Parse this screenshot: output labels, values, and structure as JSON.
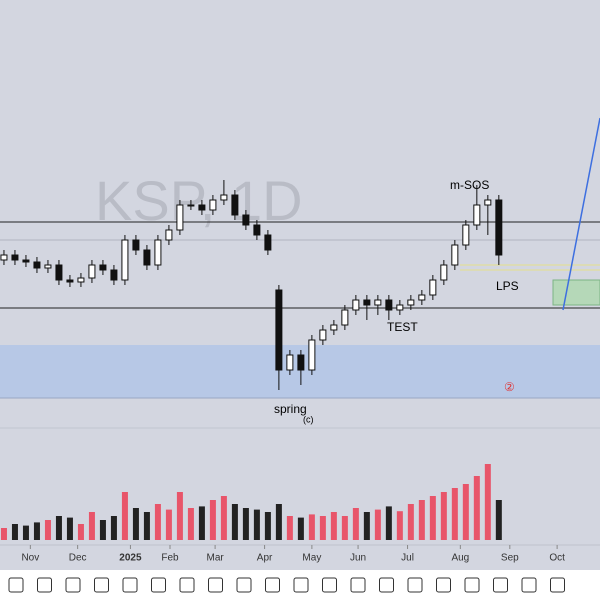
{
  "chart_data": {
    "type": "candlestick",
    "watermark": "KSP, 1D",
    "annotations": {
      "msos": "m-SOS",
      "lps": "LPS",
      "test": "TEST",
      "spring": "spring",
      "c": "(c)",
      "wave": "②"
    },
    "xlim": [
      -0.36,
      54.2
    ],
    "ylim": [
      0,
      215
    ],
    "xticks": [
      {
        "value": 2.4,
        "label": "Nov"
      },
      {
        "value": 6.7,
        "label": "Dec"
      },
      {
        "value": 11.5,
        "label": "2025"
      },
      {
        "value": 15.1,
        "label": "Feb"
      },
      {
        "value": 19.2,
        "label": "Mar"
      },
      {
        "value": 23.7,
        "label": "Apr"
      },
      {
        "value": 28,
        "label": "May"
      },
      {
        "value": 32.2,
        "label": "Jun"
      },
      {
        "value": 36.7,
        "label": "Jul"
      },
      {
        "value": 41.5,
        "label": "Aug"
      },
      {
        "value": 46,
        "label": "Sep"
      },
      {
        "value": 50.3,
        "label": "Oct"
      }
    ],
    "ohlc": [
      [
        85,
        90,
        82.5,
        87.5
      ],
      [
        87.5,
        90,
        82.5,
        85
      ],
      [
        85,
        87.5,
        81.5,
        84
      ],
      [
        84,
        86.5,
        78.5,
        81
      ],
      [
        81,
        85,
        78.5,
        82.5
      ],
      [
        82.5,
        85,
        72.5,
        75
      ],
      [
        75,
        77.5,
        71.5,
        74
      ],
      [
        74,
        78.5,
        71.5,
        76
      ],
      [
        76,
        85,
        73.5,
        82.5
      ],
      [
        82.5,
        85,
        77.5,
        80
      ],
      [
        80,
        82.5,
        72.5,
        75
      ],
      [
        75,
        97.5,
        72.5,
        95
      ],
      [
        95,
        97.5,
        87.5,
        90
      ],
      [
        90,
        92.5,
        80,
        82.5
      ],
      [
        82.5,
        97.5,
        80,
        95
      ],
      [
        95,
        102.5,
        92.5,
        100
      ],
      [
        100,
        115,
        97.5,
        112.5
      ],
      [
        112.5,
        115,
        110,
        112.5
      ],
      [
        112.5,
        115,
        107.5,
        110
      ],
      [
        110,
        117.5,
        107.5,
        115
      ],
      [
        115,
        125,
        112.5,
        117.5
      ],
      [
        117.5,
        120,
        105,
        107.5
      ],
      [
        107.5,
        110,
        100,
        102.5
      ],
      [
        102.5,
        105,
        95,
        97.5
      ],
      [
        97.5,
        100,
        87.5,
        90
      ],
      [
        70,
        72.5,
        20,
        30
      ],
      [
        30,
        40,
        27.5,
        37.5
      ],
      [
        37.5,
        40,
        22.5,
        30
      ],
      [
        30,
        47.5,
        27.5,
        45
      ],
      [
        45,
        52.5,
        42.5,
        50
      ],
      [
        50,
        55,
        47.5,
        52.5
      ],
      [
        52.5,
        62.5,
        50,
        60
      ],
      [
        60,
        67.5,
        57.5,
        65
      ],
      [
        65,
        67.5,
        55,
        62.5
      ],
      [
        62.5,
        67.5,
        57.5,
        65
      ],
      [
        65,
        67.5,
        55,
        60
      ],
      [
        60,
        65,
        57.5,
        62.5
      ],
      [
        62.5,
        67.5,
        60,
        65
      ],
      [
        65,
        70,
        62.5,
        67.5
      ],
      [
        67.5,
        77.5,
        65,
        75
      ],
      [
        75,
        85,
        72.5,
        82.5
      ],
      [
        82.5,
        95,
        80,
        92.5
      ],
      [
        92.5,
        105,
        90,
        102.5
      ],
      [
        102.5,
        122.5,
        100,
        112.5
      ],
      [
        112.5,
        117.5,
        97.5,
        115
      ],
      [
        115,
        117.5,
        82.5,
        87.5
      ]
    ],
    "volume": [
      15,
      20,
      18,
      22,
      25,
      30,
      28,
      20,
      35,
      25,
      30,
      60,
      40,
      35,
      45,
      38,
      60,
      40,
      42,
      50,
      55,
      45,
      40,
      38,
      35,
      45,
      30,
      28,
      32,
      30,
      35,
      30,
      40,
      35,
      38,
      42,
      36,
      45,
      50,
      55,
      60,
      65,
      70,
      80,
      95,
      50
    ],
    "volume_ylim": [
      0,
      100
    ],
    "up_color": "#e8556a",
    "down_color": "#222222"
  }
}
